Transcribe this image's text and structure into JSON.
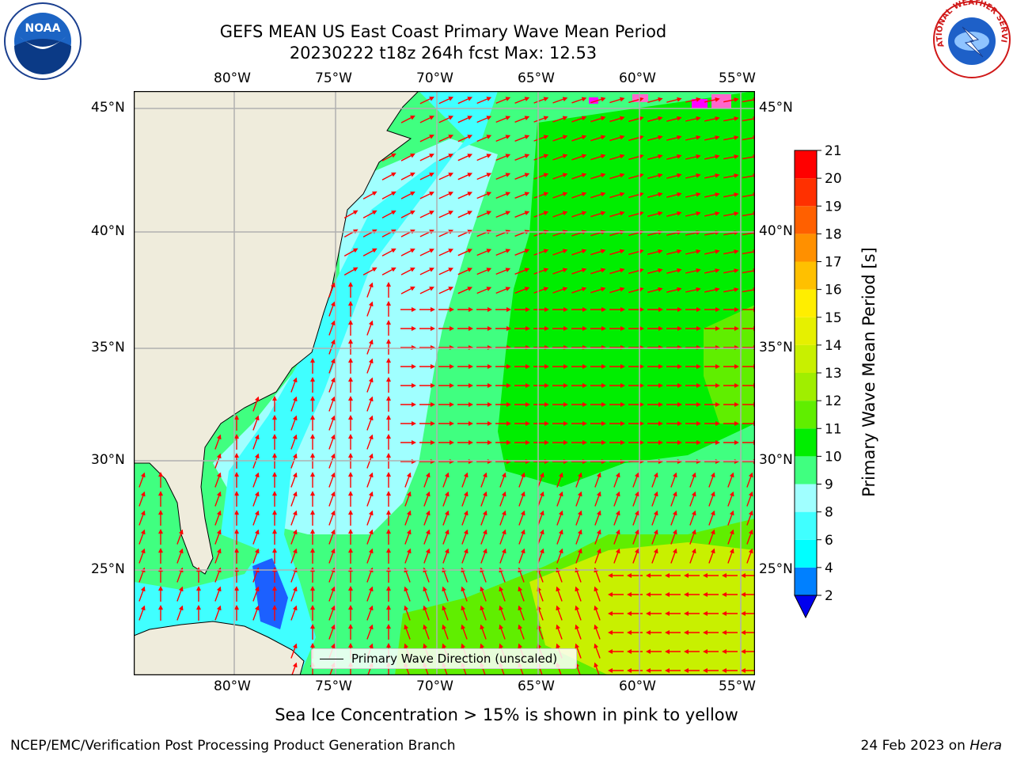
{
  "header": {
    "title_line1": "GEFS MEAN US East Coast Primary Wave Mean Period",
    "title_line2": "20230222 t18z 264h fcst   Max: 12.53"
  },
  "logos": {
    "left": "NOAA",
    "right": "NATIONAL WEATHER SERVICE"
  },
  "map": {
    "lon_labels": [
      "80°W",
      "75°W",
      "70°W",
      "65°W",
      "60°W",
      "55°W"
    ],
    "lat_labels": [
      "45°N",
      "40°N",
      "35°N",
      "30°N",
      "25°N"
    ],
    "legend_label": "Primary Wave Direction (unscaled)",
    "land_color": "#efecdc",
    "arrow_color": "#ff0000",
    "gridline_color": "#b0b0b0",
    "ice_colors": [
      "#ff00ff",
      "#ff66cc",
      "#ffff66"
    ]
  },
  "colorbar": {
    "title": "Primary Wave Mean Period [s]",
    "ticks": [
      "2",
      "4",
      "6",
      "8",
      "9",
      "10",
      "11",
      "12",
      "13",
      "14",
      "15",
      "16",
      "17",
      "18",
      "19",
      "20",
      "21"
    ],
    "colors": [
      "#0000ee",
      "#0080ff",
      "#00ffff",
      "#40ffff",
      "#a0ffff",
      "#40ff80",
      "#00ee00",
      "#60ee00",
      "#a0ee00",
      "#c8f000",
      "#e6f000",
      "#ffee00",
      "#ffc000",
      "#ff9000",
      "#ff6000",
      "#ff3000",
      "#ff0000"
    ],
    "extend_color": "#0000ee"
  },
  "chart_data": {
    "type": "heatmap",
    "title": "GEFS MEAN US East Coast Primary Wave Mean Period",
    "subtitle": "20230222 t18z 264h fcst   Max: 12.53",
    "x_ticks": [
      "80°W",
      "75°W",
      "70°W",
      "65°W",
      "60°W",
      "55°W"
    ],
    "y_ticks": [
      "45°N",
      "40°N",
      "35°N",
      "30°N",
      "25°N"
    ],
    "xlim": [
      -85,
      -54.5
    ],
    "ylim": [
      20.5,
      46
    ],
    "value_max": 12.53,
    "colorbar_label": "Primary Wave Mean Period [s]",
    "colorbar_range": [
      2,
      21
    ]
  },
  "note": "Sea Ice Concentration > 15% is shown in pink to yellow",
  "footer": {
    "left": "NCEP/EMC/Verification Post Processing Product Generation Branch",
    "date": "24 Feb 2023 on",
    "host": "Hera"
  }
}
